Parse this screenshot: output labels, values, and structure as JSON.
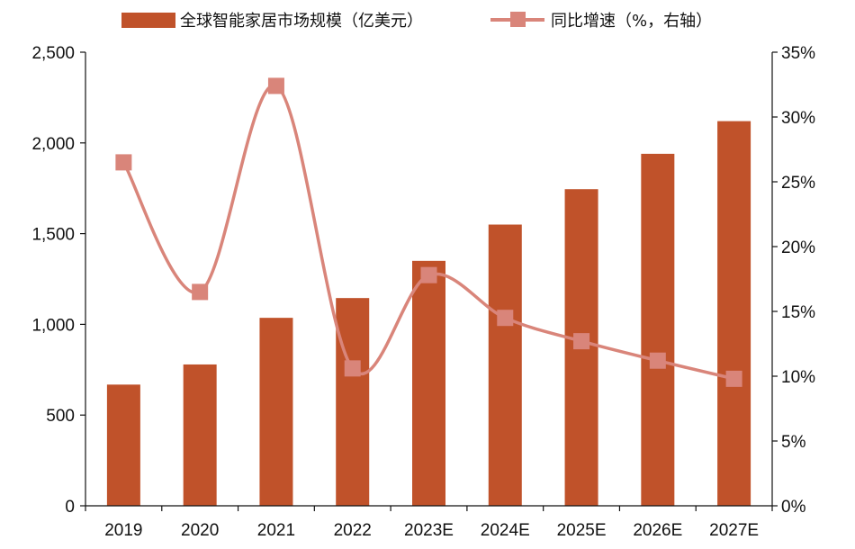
{
  "chart_data": {
    "type": "bar",
    "categories": [
      "2019",
      "2020",
      "2021",
      "2022",
      "2023E",
      "2024E",
      "2025E",
      "2026E",
      "2027E"
    ],
    "series": [
      {
        "name": "全球智能家居市场规模（亿美元）",
        "type": "bar",
        "axis": "left",
        "color": "#c0522a",
        "values": [
          668,
          779,
          1036,
          1145,
          1350,
          1550,
          1745,
          1940,
          2120
        ]
      },
      {
        "name": "同比增速（%，右轴）",
        "type": "line",
        "axis": "right",
        "color": "#d9857a",
        "values": [
          26.5,
          16.5,
          32.4,
          10.6,
          17.8,
          14.5,
          12.7,
          11.2,
          9.8
        ]
      }
    ],
    "y_left": {
      "ylim": [
        0,
        2500
      ],
      "ticks": [
        0,
        500,
        1000,
        1500,
        2000,
        2500
      ],
      "tick_labels": [
        "0",
        "500",
        "1,000",
        "1,500",
        "2,000",
        "2,500"
      ]
    },
    "y_right": {
      "ylim": [
        0,
        35
      ],
      "ticks": [
        0,
        5,
        10,
        15,
        20,
        25,
        30,
        35
      ],
      "tick_labels": [
        "0%",
        "5%",
        "10%",
        "15%",
        "20%",
        "25%",
        "30%",
        "35%"
      ]
    },
    "legend": "top-center",
    "grid": false
  }
}
